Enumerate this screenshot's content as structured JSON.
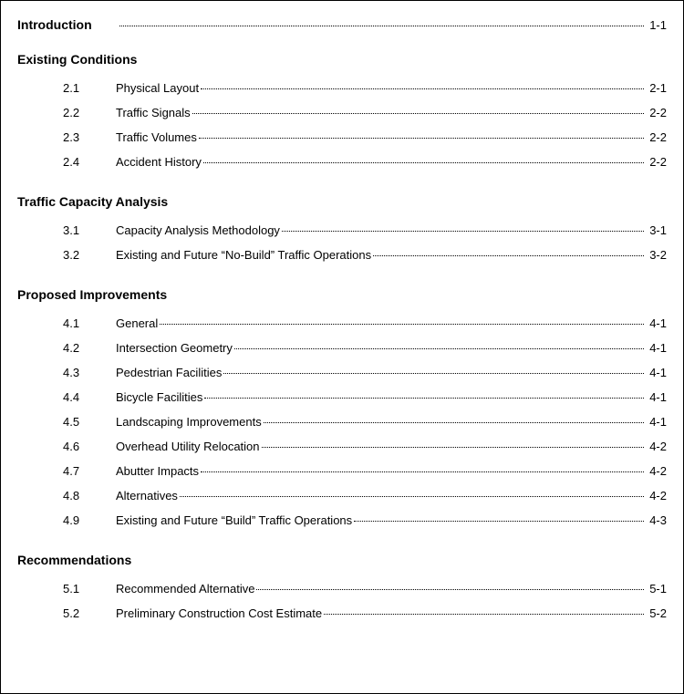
{
  "intro": {
    "title": "Introduction",
    "page": "1-1"
  },
  "sections": [
    {
      "heading": "Existing Conditions",
      "entries": [
        {
          "num": "2.1",
          "title": "Physical Layout",
          "page": "2-1"
        },
        {
          "num": "2.2",
          "title": "Traffic Signals",
          "page": "2-2"
        },
        {
          "num": "2.3",
          "title": "Traffic Volumes",
          "page": "2-2"
        },
        {
          "num": "2.4",
          "title": "Accident History",
          "page": "2-2"
        }
      ]
    },
    {
      "heading": "Traffic Capacity Analysis",
      "entries": [
        {
          "num": "3.1",
          "title": "Capacity Analysis Methodology",
          "page": "3-1"
        },
        {
          "num": "3.2",
          "title": "Existing and Future “No-Build” Traffic Operations",
          "page": "3-2"
        }
      ]
    },
    {
      "heading": "Proposed Improvements",
      "entries": [
        {
          "num": "4.1",
          "title": "General",
          "page": "4-1"
        },
        {
          "num": "4.2",
          "title": "Intersection Geometry",
          "page": "4-1"
        },
        {
          "num": "4.3",
          "title": "Pedestrian Facilities",
          "page": "4-1"
        },
        {
          "num": "4.4",
          "title": "Bicycle Facilities",
          "page": "4-1"
        },
        {
          "num": "4.5",
          "title": "Landscaping Improvements",
          "page": "4-1"
        },
        {
          "num": "4.6",
          "title": "Overhead Utility Relocation",
          "page": "4-2"
        },
        {
          "num": "4.7",
          "title": "Abutter Impacts",
          "page": "4-2"
        },
        {
          "num": "4.8",
          "title": "Alternatives",
          "page": "4-2"
        },
        {
          "num": "4.9",
          "title": "Existing and Future “Build” Traffic Operations",
          "page": "4-3"
        }
      ]
    },
    {
      "heading": "Recommendations",
      "entries": [
        {
          "num": "5.1",
          "title": "Recommended Alternative",
          "page": "5-1"
        },
        {
          "num": "5.2",
          "title": "Preliminary Construction Cost Estimate",
          "page": "5-2"
        }
      ]
    }
  ]
}
